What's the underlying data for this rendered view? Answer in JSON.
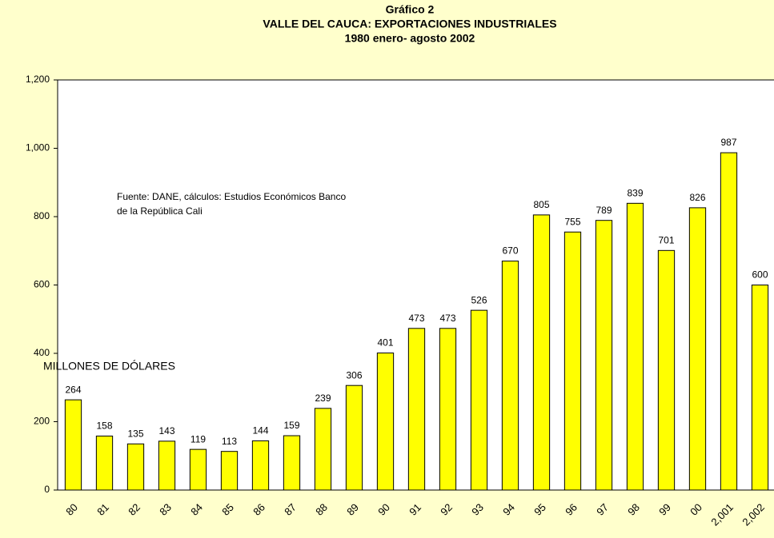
{
  "chart_data": {
    "type": "bar",
    "title_lines": [
      "Gráfico 2",
      "VALLE DEL CAUCA: EXPORTACIONES INDUSTRIALES",
      "1980 enero- agosto 2002"
    ],
    "annotation_lines": [
      "Fuente: DANE, cálculos: Estudios Económicos Banco",
      "de la República Cali"
    ],
    "y_axis_label": "MILLONES DE DÓLARES",
    "categories": [
      "80",
      "81",
      "82",
      "83",
      "84",
      "85",
      "86",
      "87",
      "88",
      "89",
      "90",
      "91",
      "92",
      "93",
      "94",
      "95",
      "96",
      "97",
      "98",
      "99",
      "00",
      "2,001",
      "2,002"
    ],
    "values": [
      264,
      158,
      135,
      143,
      119,
      113,
      144,
      159,
      239,
      306,
      401,
      473,
      473,
      526,
      670,
      805,
      755,
      789,
      839,
      701,
      826,
      987,
      600
    ],
    "color": "#ffff00",
    "ylim": [
      0,
      1200
    ],
    "yticks": [
      0,
      200,
      400,
      600,
      800,
      {
        "value": 1000,
        "label": "1,000"
      },
      {
        "value": 1200,
        "label": "1,200"
      }
    ]
  }
}
